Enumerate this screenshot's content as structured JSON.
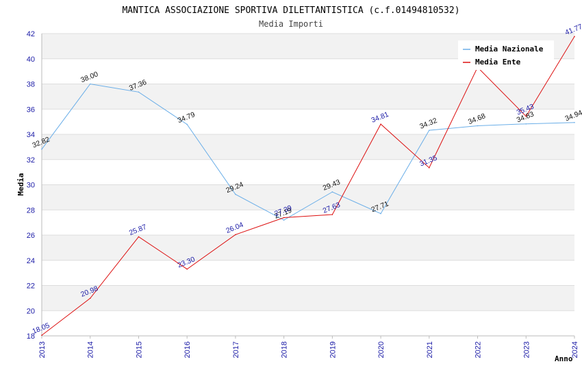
{
  "chart_data": {
    "type": "line",
    "title": "MANTICA ASSOCIAZIONE SPORTIVA DILETTANTISTICA (c.f.01494810532)",
    "subtitle": "Media Importi",
    "xlabel": "Anno",
    "ylabel": "Media",
    "ylim": [
      18,
      42
    ],
    "yticks": [
      "18",
      "20",
      "22",
      "24",
      "26",
      "28",
      "30",
      "32",
      "34",
      "36",
      "38",
      "40",
      "42"
    ],
    "categories": [
      "2013",
      "2014",
      "2015",
      "2016",
      "2017",
      "2018",
      "2019",
      "2020",
      "2021",
      "2022",
      "2023",
      "2024"
    ],
    "grid": "horizontal, alternating bands",
    "legend_position": "top-right",
    "series": [
      {
        "name": "Media Nazionale",
        "color": "#6aaee8",
        "values": [
          32.82,
          38.0,
          37.36,
          34.79,
          29.24,
          27.19,
          29.43,
          27.71,
          34.32,
          34.68,
          34.83,
          34.94
        ],
        "labels": [
          "32.82",
          "38.00",
          "37.36",
          "34.79",
          "29.24",
          "27.19",
          "29.43",
          "27.71",
          "34.32",
          "34.68",
          "34.83",
          "34.94"
        ]
      },
      {
        "name": "Media Ente",
        "color": "#dd1111",
        "values": [
          18.05,
          20.98,
          25.87,
          23.3,
          26.04,
          27.39,
          27.63,
          34.81,
          31.35,
          39.33,
          35.43,
          41.77
        ],
        "labels": [
          "18.05",
          "20.98",
          "25.87",
          "23.30",
          "26.04",
          "27.39",
          "27.63",
          "34.81",
          "31.35",
          "",
          "35.43",
          "41.77"
        ]
      }
    ]
  }
}
